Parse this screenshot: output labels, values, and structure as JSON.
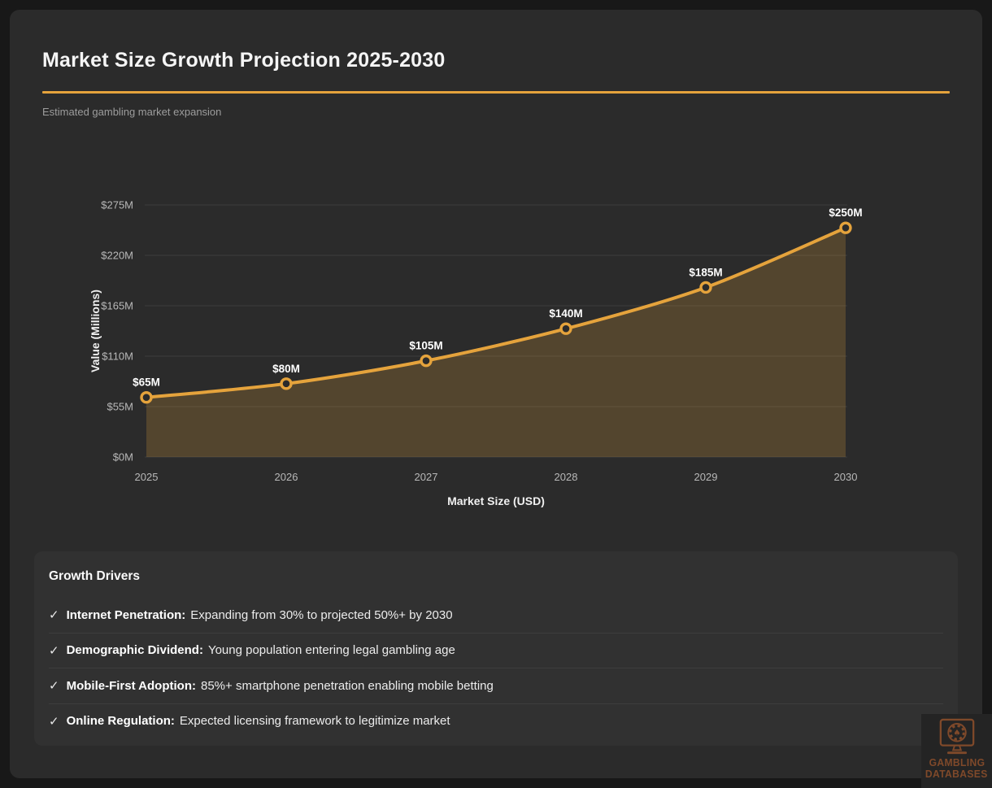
{
  "header": {
    "title": "Market Size Growth Projection 2025-2030",
    "subtitle": "Estimated gambling market expansion",
    "accent_color": "#E5A33C"
  },
  "chart_data": {
    "type": "area",
    "x": [
      "2025",
      "2026",
      "2027",
      "2028",
      "2029",
      "2030"
    ],
    "values": [
      65,
      80,
      105,
      140,
      185,
      250
    ],
    "point_labels": [
      "$65M",
      "$80M",
      "$105M",
      "$140M",
      "$185M",
      "$250M"
    ],
    "xlabel": "Market Size (USD)",
    "ylabel": "Value (Millions)",
    "ylim": [
      0,
      275
    ],
    "y_ticks": [
      {
        "value": 0,
        "label": "$0M"
      },
      {
        "value": 55,
        "label": "$55M"
      },
      {
        "value": 110,
        "label": "$110M"
      },
      {
        "value": 165,
        "label": "$165M"
      },
      {
        "value": 220,
        "label": "$220M"
      },
      {
        "value": 275,
        "label": "$275M"
      }
    ],
    "grid": "horizontal",
    "legend": "none",
    "line_color": "#E5A33C",
    "area_fill": "rgba(229, 163, 60, 0.22)",
    "marker_fill": "#2b2b2b",
    "grid_color": "#3a3a3a"
  },
  "growth_drivers": {
    "heading": "Growth Drivers",
    "items": [
      {
        "check": "✓",
        "label": "Internet Penetration:",
        "text": "Expanding from 30% to projected 50%+ by 2030"
      },
      {
        "check": "✓",
        "label": "Demographic Dividend:",
        "text": "Young population entering legal gambling age"
      },
      {
        "check": "✓",
        "label": "Mobile-First Adoption:",
        "text": "85%+ smartphone penetration enabling mobile betting"
      },
      {
        "check": "✓",
        "label": "Online Regulation:",
        "text": "Expected licensing framework to legitimize market"
      }
    ]
  },
  "watermark": {
    "line1": "GAMBLING",
    "line2": "DATABASES",
    "icon": "monitor-poker-chip-icon",
    "color": "#7F492A"
  }
}
